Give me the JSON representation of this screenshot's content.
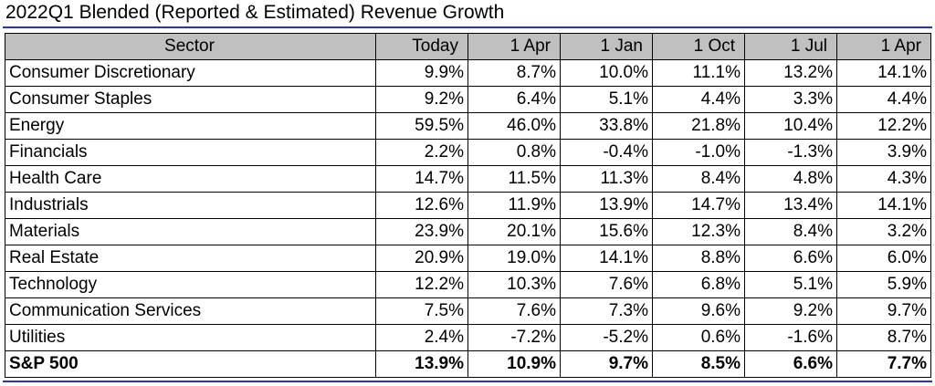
{
  "title": "2022Q1 Blended (Reported & Estimated) Revenue Growth",
  "chart_data": {
    "type": "table",
    "title": "2022Q1 Blended (Reported & Estimated) Revenue Growth",
    "columns": [
      "Sector",
      "Today",
      "1 Apr",
      "1 Jan",
      "1 Oct",
      "1 Jul",
      "1 Apr"
    ],
    "rows": [
      {
        "sector": "Consumer Discretionary",
        "values": [
          "9.9%",
          "8.7%",
          "10.0%",
          "11.1%",
          "13.2%",
          "14.1%"
        ]
      },
      {
        "sector": "Consumer Staples",
        "values": [
          "9.2%",
          "6.4%",
          "5.1%",
          "4.4%",
          "3.3%",
          "4.4%"
        ]
      },
      {
        "sector": "Energy",
        "values": [
          "59.5%",
          "46.0%",
          "33.8%",
          "21.8%",
          "10.4%",
          "12.2%"
        ]
      },
      {
        "sector": "Financials",
        "values": [
          "2.2%",
          "0.8%",
          "-0.4%",
          "-1.0%",
          "-1.3%",
          "3.9%"
        ]
      },
      {
        "sector": "Health Care",
        "values": [
          "14.7%",
          "11.5%",
          "11.3%",
          "8.4%",
          "4.8%",
          "4.3%"
        ]
      },
      {
        "sector": "Industrials",
        "values": [
          "12.6%",
          "11.9%",
          "13.9%",
          "14.7%",
          "13.4%",
          "14.1%"
        ]
      },
      {
        "sector": "Materials",
        "values": [
          "23.9%",
          "20.1%",
          "15.6%",
          "12.3%",
          "8.4%",
          "3.2%"
        ]
      },
      {
        "sector": "Real Estate",
        "values": [
          "20.9%",
          "19.0%",
          "14.1%",
          "8.8%",
          "6.6%",
          "6.0%"
        ]
      },
      {
        "sector": "Technology",
        "values": [
          "12.2%",
          "10.3%",
          "7.6%",
          "6.8%",
          "5.1%",
          "5.9%"
        ]
      },
      {
        "sector": "Communication Services",
        "values": [
          "7.5%",
          "7.6%",
          "7.3%",
          "9.6%",
          "9.2%",
          "9.7%"
        ]
      },
      {
        "sector": "Utilities",
        "values": [
          "2.4%",
          "-7.2%",
          "-5.2%",
          "0.6%",
          "-1.6%",
          "8.7%"
        ]
      }
    ],
    "total": {
      "sector": "S&P 500",
      "values": [
        "13.9%",
        "10.9%",
        "9.7%",
        "8.5%",
        "6.6%",
        "7.7%"
      ]
    },
    "header_color": "#c0c0c0",
    "rule_color": "#2a2ed6"
  }
}
